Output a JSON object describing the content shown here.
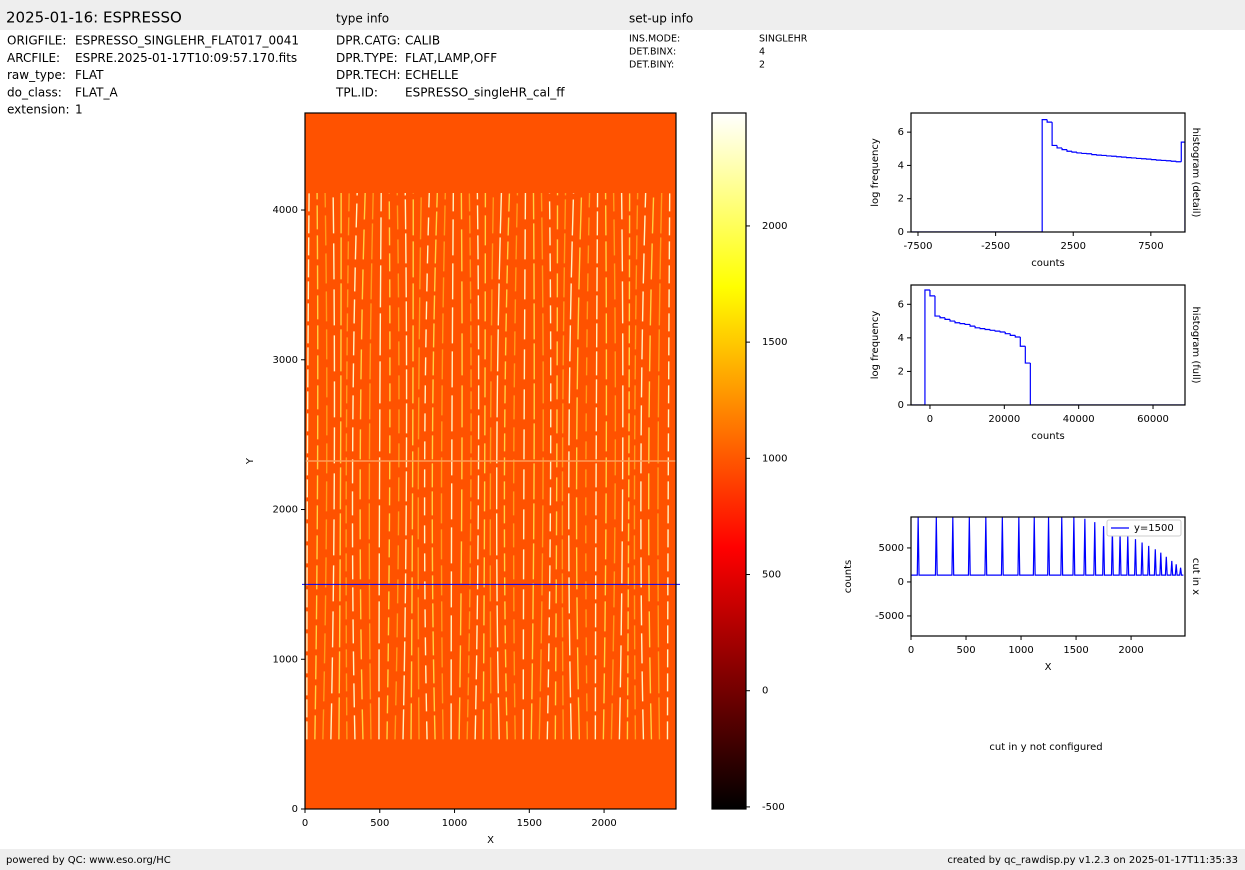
{
  "header": {
    "title": "2025-01-16: ESPRESSO",
    "type_info_title": "type info",
    "setup_info_title": "set-up info"
  },
  "file_info": [
    [
      "ORIGFILE:",
      "ESPRESSO_SINGLEHR_FLAT017_0041"
    ],
    [
      "ARCFILE:",
      "ESPRE.2025-01-17T10:09:57.170.fits"
    ],
    [
      "raw_type:",
      "FLAT"
    ],
    [
      "do_class:",
      "FLAT_A"
    ],
    [
      "extension:",
      "1"
    ]
  ],
  "type_info": [
    [
      "DPR.CATG:",
      "CALIB"
    ],
    [
      "DPR.TYPE:",
      "FLAT,LAMP,OFF"
    ],
    [
      "DPR.TECH:",
      "ECHELLE"
    ],
    [
      "TPL.ID:",
      "ESPRESSO_singleHR_cal_ff"
    ]
  ],
  "setup_info": [
    [
      "INS.MODE:",
      "SINGLEHR"
    ],
    [
      "DET.BINX:",
      "4"
    ],
    [
      "DET.BINY:",
      "2"
    ]
  ],
  "chart_data": [
    {
      "type": "image",
      "xlabel": "X",
      "ylabel": "Y",
      "xlim": [
        0,
        2481
      ],
      "ylim": [
        0,
        4648
      ],
      "xticks": [
        0,
        500,
        1000,
        1500,
        2000
      ],
      "yticks": [
        0,
        1000,
        2000,
        3000,
        4000
      ],
      "colormap": "hot",
      "cut_row": 1500,
      "cut_color": "#0000ff"
    },
    {
      "type": "colorbar",
      "colormap": "hot",
      "ylim": [
        -509,
        2486
      ],
      "yticks": [
        -500,
        0,
        500,
        1000,
        1500,
        2000
      ]
    },
    {
      "type": "histogram",
      "title": "histogram (detail)",
      "xlabel": "counts",
      "ylabel": "log frequency",
      "color": "#0000ff",
      "xlim": [
        -7950,
        9700
      ],
      "ylim": [
        0,
        7.15
      ],
      "xticks": [
        -7500,
        -2500,
        2500,
        7500
      ],
      "yticks": [
        0,
        2,
        4,
        6
      ],
      "bins": [
        500,
        820,
        1140,
        1460,
        1780,
        2100,
        2420,
        2740,
        3060,
        3380,
        3700,
        4020,
        4340,
        4660,
        4980,
        5300,
        5620,
        5940,
        6260,
        6580,
        6900,
        7220,
        7540,
        7860,
        8180,
        8500,
        8820,
        9140,
        9460,
        9700
      ],
      "values": [
        6.75,
        6.6,
        5.2,
        5.05,
        4.95,
        4.85,
        4.8,
        4.75,
        4.72,
        4.7,
        4.65,
        4.62,
        4.6,
        4.57,
        4.55,
        4.52,
        4.5,
        4.47,
        4.45,
        4.42,
        4.4,
        4.38,
        4.35,
        4.32,
        4.3,
        4.28,
        4.25,
        4.22,
        5.4
      ]
    },
    {
      "type": "histogram",
      "title": "histogram (full)",
      "xlabel": "counts",
      "ylabel": "log frequency",
      "color": "#0000ff",
      "xlim": [
        -5100,
        68600
      ],
      "ylim": [
        0,
        7.15
      ],
      "xticks": [
        0,
        20000,
        40000,
        60000
      ],
      "yticks": [
        0,
        2,
        4,
        6
      ],
      "bins": [
        -1350,
        0,
        1350,
        2700,
        4050,
        5400,
        6750,
        8100,
        9450,
        10800,
        12150,
        13500,
        14850,
        16200,
        17550,
        18900,
        20250,
        21600,
        22950,
        24300,
        25650,
        27000
      ],
      "values": [
        6.85,
        6.5,
        5.3,
        5.2,
        5.1,
        5.0,
        4.9,
        4.85,
        4.8,
        4.7,
        4.6,
        4.55,
        4.5,
        4.45,
        4.4,
        4.35,
        4.25,
        4.15,
        4.05,
        3.5,
        2.5
      ]
    },
    {
      "type": "line",
      "title": "cut in x",
      "xlabel": "X",
      "ylabel": "counts",
      "legend": "upper right",
      "xlim": [
        0,
        2490
      ],
      "ylim": [
        -7950,
        9550
      ],
      "xticks": [
        0,
        500,
        1000,
        1500,
        2000
      ],
      "yticks": [
        -5000,
        0,
        5000
      ],
      "x": [
        0,
        57,
        65,
        73,
        222,
        230,
        238,
        372,
        380,
        388,
        522,
        530,
        538,
        672,
        680,
        688,
        822,
        830,
        838,
        972,
        980,
        988,
        1112,
        1120,
        1128,
        1242,
        1250,
        1258,
        1362,
        1370,
        1378,
        1472,
        1480,
        1488,
        1572,
        1580,
        1588,
        1662,
        1670,
        1678,
        1742,
        1750,
        1758,
        1822,
        1830,
        1838,
        1892,
        1900,
        1908,
        1962,
        1970,
        1978,
        2032,
        2040,
        2048,
        2092,
        2100,
        2108,
        2152,
        2160,
        2168,
        2212,
        2220,
        2228,
        2262,
        2270,
        2278,
        2312,
        2320,
        2328,
        2362,
        2370,
        2378,
        2402,
        2410,
        2418,
        2442,
        2450,
        2458,
        2475
      ],
      "series": [
        {
          "name": "y=1500",
          "color": "#0000ff",
          "values": [
            1000,
            1000,
            9500,
            1000,
            1000,
            9500,
            1000,
            1000,
            9500,
            1000,
            1000,
            9500,
            1000,
            1000,
            9500,
            1000,
            1000,
            9500,
            1000,
            1000,
            9500,
            1000,
            1000,
            9500,
            1000,
            1000,
            9500,
            1000,
            1000,
            9500,
            1000,
            1000,
            9500,
            1000,
            1000,
            9300,
            1000,
            1000,
            8800,
            1000,
            1000,
            8200,
            1000,
            1000,
            7700,
            1000,
            1000,
            7200,
            1000,
            1000,
            6800,
            1000,
            1000,
            6300,
            1000,
            1000,
            5800,
            1000,
            1000,
            5300,
            1000,
            1000,
            4800,
            1000,
            1000,
            4300,
            1000,
            1000,
            3700,
            1000,
            1000,
            3100,
            1000,
            1000,
            2600,
            1000,
            1000,
            2100,
            1000,
            1000
          ]
        }
      ]
    }
  ],
  "note": "cut in y not configured",
  "footer": {
    "left": "powered by QC: www.eso.org/HC",
    "right": "created by qc_rawdisp.py v1.2.3 on 2025-01-17T11:35:33"
  }
}
